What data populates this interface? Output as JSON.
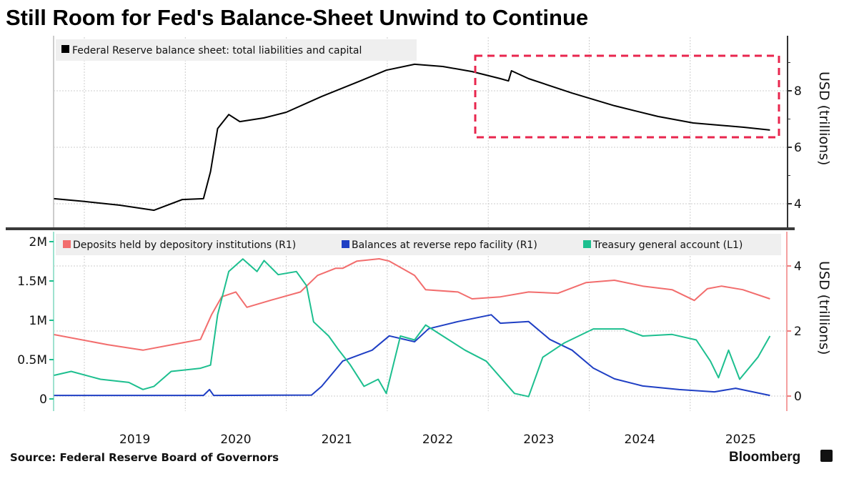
{
  "title": "Still Room for Fed's Balance-Sheet Unwind to Continue",
  "source": "Source: Federal Reserve Board of Governors",
  "logo": "Bloomberg",
  "x_tick_labels": [
    "2019",
    "2020",
    "2021",
    "2022",
    "2023",
    "2024",
    "2025"
  ],
  "chart_data": [
    {
      "type": "line",
      "ylabel": "USD (trillions)",
      "y_axis": "right",
      "ylim": [
        3.2,
        9.6
      ],
      "y_ticks": [
        "4",
        "6",
        "8"
      ],
      "xlim": [
        2018.7,
        2025.85
      ],
      "grid": true,
      "legend": "top-left",
      "annotation": "red dashed box highlighting 2022-2025 decline",
      "series": [
        {
          "name": "Federal Reserve balance sheet: total liabilities and capital",
          "color": "#000000",
          "points": [
            [
              2018.7,
              4.18
            ],
            [
              2019.0,
              4.08
            ],
            [
              2019.35,
              3.95
            ],
            [
              2019.69,
              3.77
            ],
            [
              2019.97,
              4.15
            ],
            [
              2020.18,
              4.18
            ],
            [
              2020.25,
              5.14
            ],
            [
              2020.32,
              6.66
            ],
            [
              2020.43,
              7.16
            ],
            [
              2020.54,
              6.91
            ],
            [
              2020.78,
              7.04
            ],
            [
              2021.0,
              7.24
            ],
            [
              2021.35,
              7.8
            ],
            [
              2021.7,
              8.3
            ],
            [
              2021.99,
              8.73
            ],
            [
              2022.27,
              8.94
            ],
            [
              2022.55,
              8.86
            ],
            [
              2022.84,
              8.68
            ],
            [
              2023.12,
              8.43
            ],
            [
              2023.2,
              8.35
            ],
            [
              2023.23,
              8.71
            ],
            [
              2023.4,
              8.43
            ],
            [
              2023.83,
              7.92
            ],
            [
              2024.25,
              7.47
            ],
            [
              2024.68,
              7.09
            ],
            [
              2025.03,
              6.86
            ],
            [
              2025.53,
              6.71
            ],
            [
              2025.79,
              6.61
            ]
          ]
        }
      ]
    },
    {
      "type": "line",
      "ylabel": "USD (trillions)",
      "left_ticks": [
        "0",
        "0.5M",
        "1M",
        "1.5M",
        "2M"
      ],
      "right_ticks": [
        "0",
        "2",
        "4"
      ],
      "ylim_left": [
        0,
        2000000
      ],
      "ylim_right": [
        0,
        5
      ],
      "xlim": [
        2018.7,
        2025.85
      ],
      "grid": true,
      "legend": "top",
      "series": [
        {
          "name": "Deposits held by depository institutions (R1)",
          "axis": "right",
          "color": "#f26d6d",
          "points": [
            [
              2018.7,
              1.89
            ],
            [
              2019.23,
              1.58
            ],
            [
              2019.58,
              1.41
            ],
            [
              2019.87,
              1.58
            ],
            [
              2020.15,
              1.74
            ],
            [
              2020.26,
              2.5
            ],
            [
              2020.36,
              3.05
            ],
            [
              2020.5,
              3.2
            ],
            [
              2020.61,
              2.73
            ],
            [
              2020.85,
              2.95
            ],
            [
              2021.14,
              3.2
            ],
            [
              2021.31,
              3.71
            ],
            [
              2021.49,
              3.93
            ],
            [
              2021.56,
              3.93
            ],
            [
              2021.7,
              4.15
            ],
            [
              2021.92,
              4.22
            ],
            [
              2022.02,
              4.15
            ],
            [
              2022.27,
              3.71
            ],
            [
              2022.38,
              3.27
            ],
            [
              2022.7,
              3.2
            ],
            [
              2022.84,
              2.99
            ],
            [
              2023.12,
              3.05
            ],
            [
              2023.4,
              3.2
            ],
            [
              2023.69,
              3.16
            ],
            [
              2023.97,
              3.49
            ],
            [
              2024.25,
              3.56
            ],
            [
              2024.53,
              3.38
            ],
            [
              2024.82,
              3.27
            ],
            [
              2025.04,
              2.94
            ],
            [
              2025.17,
              3.3
            ],
            [
              2025.31,
              3.38
            ],
            [
              2025.52,
              3.27
            ],
            [
              2025.79,
              2.99
            ]
          ]
        },
        {
          "name": "Balances at reverse repo facility (R1)",
          "axis": "right",
          "color": "#1f3fc4",
          "points": [
            [
              2018.7,
              0.02
            ],
            [
              2020.18,
              0.02
            ],
            [
              2020.24,
              0.2
            ],
            [
              2020.28,
              0.02
            ],
            [
              2021.25,
              0.03
            ],
            [
              2021.35,
              0.3
            ],
            [
              2021.56,
              1.08
            ],
            [
              2021.85,
              1.41
            ],
            [
              2022.02,
              1.85
            ],
            [
              2022.27,
              1.67
            ],
            [
              2022.41,
              2.07
            ],
            [
              2022.7,
              2.29
            ],
            [
              2023.03,
              2.5
            ],
            [
              2023.12,
              2.24
            ],
            [
              2023.4,
              2.29
            ],
            [
              2023.61,
              1.74
            ],
            [
              2023.83,
              1.41
            ],
            [
              2024.04,
              0.86
            ],
            [
              2024.25,
              0.53
            ],
            [
              2024.53,
              0.31
            ],
            [
              2024.89,
              0.2
            ],
            [
              2025.24,
              0.13
            ],
            [
              2025.45,
              0.24
            ],
            [
              2025.79,
              0.02
            ]
          ]
        },
        {
          "name": "Treasury general account  (L1)",
          "axis": "left",
          "color": "#1dbf8f",
          "points": [
            [
              2018.7,
              300000
            ],
            [
              2018.87,
              350000
            ],
            [
              2019.16,
              250000
            ],
            [
              2019.44,
              210000
            ],
            [
              2019.58,
              120000
            ],
            [
              2019.69,
              160000
            ],
            [
              2019.86,
              350000
            ],
            [
              2020.15,
              390000
            ],
            [
              2020.25,
              430000
            ],
            [
              2020.32,
              1070000
            ],
            [
              2020.43,
              1620000
            ],
            [
              2020.57,
              1780000
            ],
            [
              2020.71,
              1620000
            ],
            [
              2020.78,
              1760000
            ],
            [
              2020.92,
              1580000
            ],
            [
              2021.1,
              1620000
            ],
            [
              2021.2,
              1440000
            ],
            [
              2021.27,
              980000
            ],
            [
              2021.42,
              800000
            ],
            [
              2021.52,
              620000
            ],
            [
              2021.63,
              440000
            ],
            [
              2021.77,
              160000
            ],
            [
              2021.91,
              250000
            ],
            [
              2021.99,
              70000
            ],
            [
              2022.13,
              800000
            ],
            [
              2022.27,
              750000
            ],
            [
              2022.38,
              940000
            ],
            [
              2022.55,
              800000
            ],
            [
              2022.77,
              620000
            ],
            [
              2022.98,
              480000
            ],
            [
              2023.26,
              70000
            ],
            [
              2023.4,
              30000
            ],
            [
              2023.54,
              530000
            ],
            [
              2023.75,
              710000
            ],
            [
              2024.04,
              890000
            ],
            [
              2024.34,
              890000
            ],
            [
              2024.53,
              800000
            ],
            [
              2024.82,
              820000
            ],
            [
              2025.06,
              750000
            ],
            [
              2025.2,
              480000
            ],
            [
              2025.28,
              270000
            ],
            [
              2025.38,
              620000
            ],
            [
              2025.49,
              250000
            ],
            [
              2025.67,
              530000
            ],
            [
              2025.79,
              800000
            ]
          ]
        }
      ]
    }
  ],
  "colors": {
    "highlight_box": "#e8264e",
    "legend_bg": "#efefef",
    "left_axis": "#1dbf8f",
    "right_axis_bottom": "#f08080"
  }
}
